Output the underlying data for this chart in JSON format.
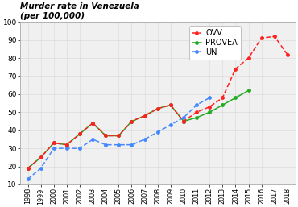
{
  "title": "Murder rate in Venezuela\n(per 100,000)",
  "ovv_years": [
    1998,
    1999,
    2000,
    2001,
    2002,
    2003,
    2004,
    2005,
    2006,
    2007,
    2008,
    2009,
    2010,
    2011,
    2012,
    2013,
    2014,
    2015,
    2016,
    2017,
    2018
  ],
  "ovv_values": [
    19,
    25,
    33,
    32,
    38,
    44,
    37,
    37,
    45,
    48,
    52,
    54,
    45,
    50,
    53,
    58,
    74,
    80,
    91,
    92,
    82
  ],
  "provea_years": [
    1998,
    1999,
    2000,
    2001,
    2002,
    2003,
    2004,
    2005,
    2006,
    2007,
    2008,
    2009,
    2010,
    2011,
    2012,
    2013,
    2014,
    2015
  ],
  "provea_values": [
    19,
    25,
    33,
    32,
    38,
    44,
    37,
    37,
    45,
    48,
    52,
    54,
    45,
    47,
    50,
    54,
    58,
    62
  ],
  "un_years": [
    1998,
    1999,
    2000,
    2001,
    2002,
    2003,
    2004,
    2005,
    2006,
    2007,
    2008,
    2009,
    2010,
    2011,
    2012
  ],
  "un_values": [
    13,
    19,
    30,
    30,
    30,
    35,
    32,
    32,
    32,
    35,
    39,
    43,
    47,
    54,
    58
  ],
  "ovv_color": "#ff2020",
  "provea_color": "#22aa22",
  "un_color": "#4488ff",
  "ylim_min": 10,
  "ylim_max": 100,
  "xlim_min": 1997.4,
  "xlim_max": 2018.6,
  "yticks": [
    10,
    20,
    30,
    40,
    50,
    60,
    70,
    80,
    90,
    100
  ],
  "bg_color": "#f0f0f0",
  "grid_color": "#dddddd"
}
